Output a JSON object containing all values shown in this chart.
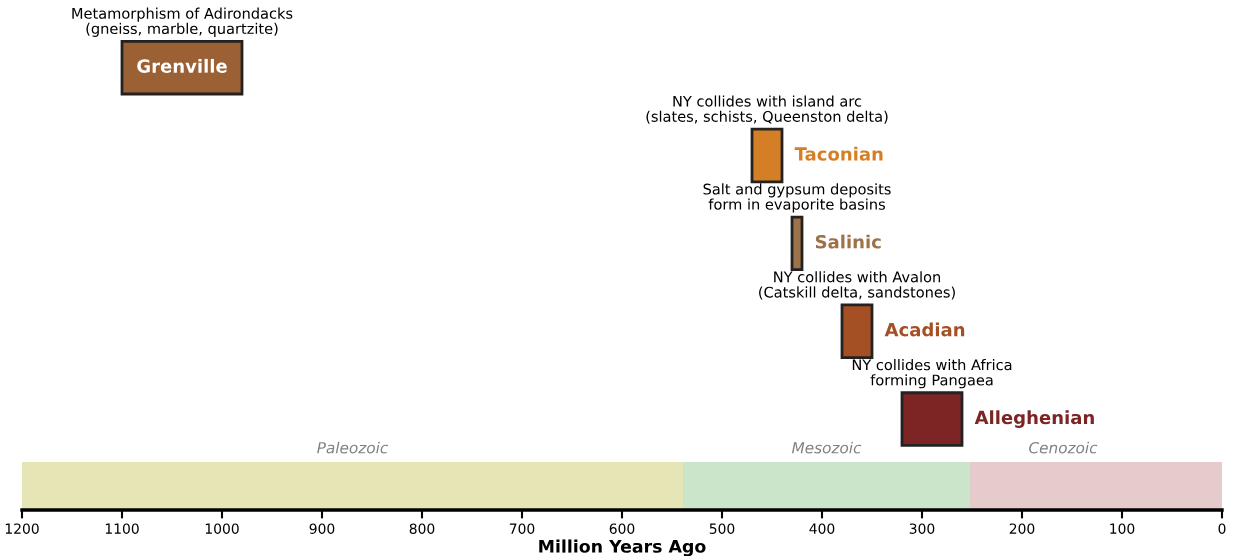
{
  "chart_data": [
    {
      "type": "bar",
      "orientation": "horizontal",
      "categories": [
        null,
        null,
        null,
        null,
        null
      ],
      "base": [
        980,
        440,
        420,
        350,
        260
      ],
      "values": [
        120,
        30,
        10,
        30,
        60
      ],
      "colors": [
        "#9b6135",
        "#d47f26",
        "#9e7248",
        "#a54f25",
        "#7d2424"
      ],
      "value_labels": [
        "Grenville",
        "Taconian",
        "Salinic",
        "Acadian",
        "Alleghenian"
      ],
      "annotations": [
        "Metamorphism of Adirondacks\n(gneiss, marble, quartzite)",
        "NY collides with island arc\n(slates, schists, Queenston delta)",
        "Salt and gypsum deposits\nform in evaporite basins",
        "NY collides with Avalon\n(Catskill delta, sandstones)",
        "NY collides with Africa\nforming Pangaea"
      ],
      "xlim": [
        1200,
        0
      ]
    },
    {
      "type": "bar",
      "orientation": "horizontal",
      "stacked": true,
      "xlabel": "Million Years Ago",
      "categories": [
        null
      ],
      "series": [
        {
          "color": "#e5cbcb",
          "values": [
            66
          ]
        },
        {
          "name": "Cenozoic",
          "color": "#e5cbcb",
          "values": [
            186
          ]
        },
        {
          "name": "Mesozoic",
          "color": "#cbe5cb",
          "values": [
            287
          ]
        },
        {
          "name": "Paleozoic",
          "color": "#e5e5b5",
          "values": [
            661
          ]
        }
      ],
      "xlim": [
        1200,
        0
      ],
      "xticks": [
        1200,
        1100,
        1000,
        900,
        800,
        700,
        600,
        500,
        400,
        300,
        200,
        100,
        0
      ]
    }
  ]
}
